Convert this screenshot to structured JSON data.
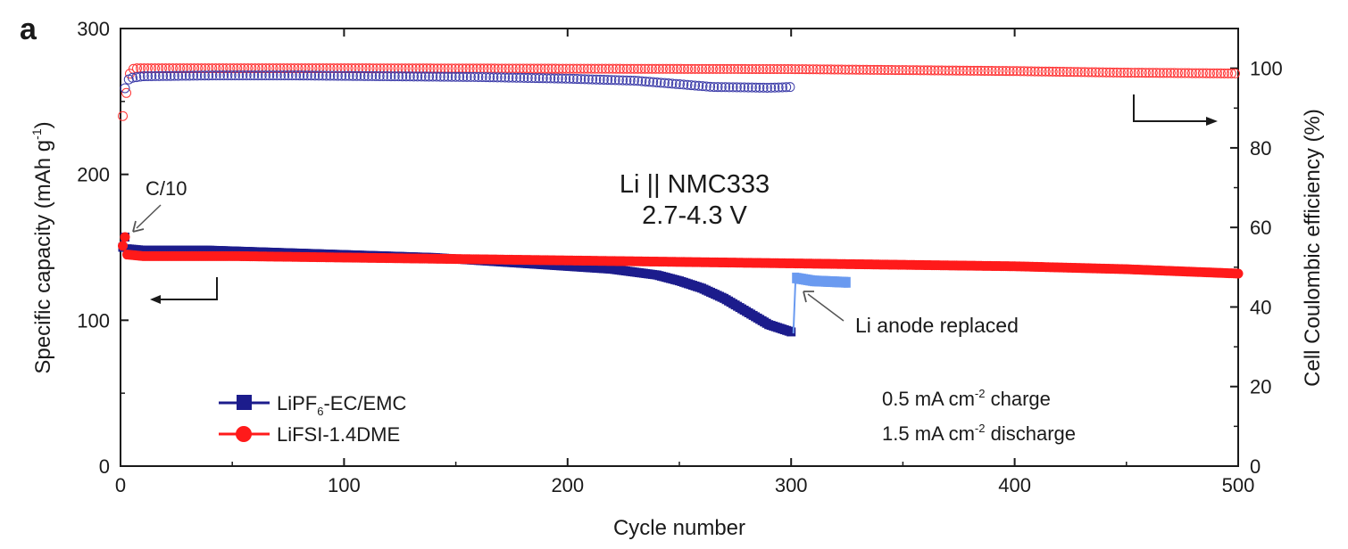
{
  "panel_label": "a",
  "colors": {
    "lipf6": "#1c1c8c",
    "lipf6_ce": "#3a3aa8",
    "lipf6_replaced": "#6a9af0",
    "lifsi": "#ff1a1a",
    "lifsi_ce": "#ff3333",
    "axis": "#1a1a1a"
  },
  "chart_data": {
    "type": "scatter",
    "xlabel": "Cycle number",
    "ylabel_left": "Specific capacity (mAh g-1)",
    "ylabel_right": "Cell Coulombic efficiency (%)",
    "xlim": [
      0,
      500
    ],
    "ylim_left": [
      0,
      300
    ],
    "ylim_right": [
      0,
      110
    ],
    "x_ticks": [
      0,
      100,
      200,
      300,
      400,
      500
    ],
    "y_left_ticks": [
      0,
      100,
      200,
      300
    ],
    "y_right_ticks": [
      0,
      20,
      40,
      60,
      80,
      100
    ],
    "center_annotation": [
      "Li || NMC333",
      "2.7-4.3 V"
    ],
    "c10_label": "C/10",
    "replaced_label": "Li anode replaced",
    "current_conditions": [
      "0.5 mA cm-2 charge",
      "1.5 mA cm-2 discharge"
    ],
    "legend_position": "bottom-left",
    "series": [
      {
        "name": "LiPF6-EC/EMC",
        "axis": "left",
        "marker": "square",
        "points": [
          [
            1,
            150
          ],
          [
            2,
            157
          ],
          [
            3,
            149
          ],
          [
            10,
            148
          ],
          [
            20,
            148
          ],
          [
            40,
            148
          ],
          [
            60,
            147
          ],
          [
            80,
            146
          ],
          [
            100,
            145
          ],
          [
            120,
            144
          ],
          [
            140,
            143
          ],
          [
            160,
            141
          ],
          [
            180,
            139
          ],
          [
            200,
            137
          ],
          [
            220,
            135
          ],
          [
            240,
            131
          ],
          [
            250,
            127
          ],
          [
            260,
            122
          ],
          [
            270,
            115
          ],
          [
            280,
            106
          ],
          [
            290,
            97
          ],
          [
            300,
            92
          ]
        ]
      },
      {
        "name": "LiPF6-EC/EMC (Li anode replaced)",
        "axis": "left",
        "marker": "line",
        "points": [
          [
            301,
            91
          ],
          [
            302,
            129
          ],
          [
            310,
            127
          ],
          [
            325,
            126
          ]
        ]
      },
      {
        "name": "LiFSI-1.4DME",
        "axis": "left",
        "marker": "circle",
        "points": [
          [
            1,
            151
          ],
          [
            2,
            157
          ],
          [
            3,
            145
          ],
          [
            10,
            144
          ],
          [
            50,
            144
          ],
          [
            100,
            143
          ],
          [
            150,
            142
          ],
          [
            200,
            141
          ],
          [
            250,
            140
          ],
          [
            300,
            139
          ],
          [
            350,
            138
          ],
          [
            400,
            137
          ],
          [
            450,
            135
          ],
          [
            500,
            132
          ]
        ]
      },
      {
        "name": "LiPF6-EC/EMC CE",
        "axis": "right",
        "marker": "open-circle",
        "points": [
          [
            2,
            95
          ],
          [
            3,
            96.5
          ],
          [
            4,
            97.5
          ],
          [
            10,
            98
          ],
          [
            40,
            98.2
          ],
          [
            80,
            98.2
          ],
          [
            120,
            98
          ],
          [
            160,
            97.8
          ],
          [
            200,
            97.4
          ],
          [
            230,
            96.9
          ],
          [
            250,
            96
          ],
          [
            265,
            95.3
          ],
          [
            280,
            95.2
          ],
          [
            290,
            95.1
          ],
          [
            300,
            95.3
          ]
        ]
      },
      {
        "name": "LiFSI-1.4DME CE",
        "axis": "right",
        "marker": "open-circle",
        "points": [
          [
            1,
            88
          ],
          [
            2,
            92
          ],
          [
            3,
            95
          ],
          [
            4,
            98.5
          ],
          [
            6,
            100
          ],
          [
            50,
            100
          ],
          [
            100,
            100
          ],
          [
            200,
            99.9
          ],
          [
            300,
            99.8
          ],
          [
            400,
            99.3
          ],
          [
            450,
            98.9
          ],
          [
            500,
            98.7
          ]
        ]
      }
    ]
  }
}
